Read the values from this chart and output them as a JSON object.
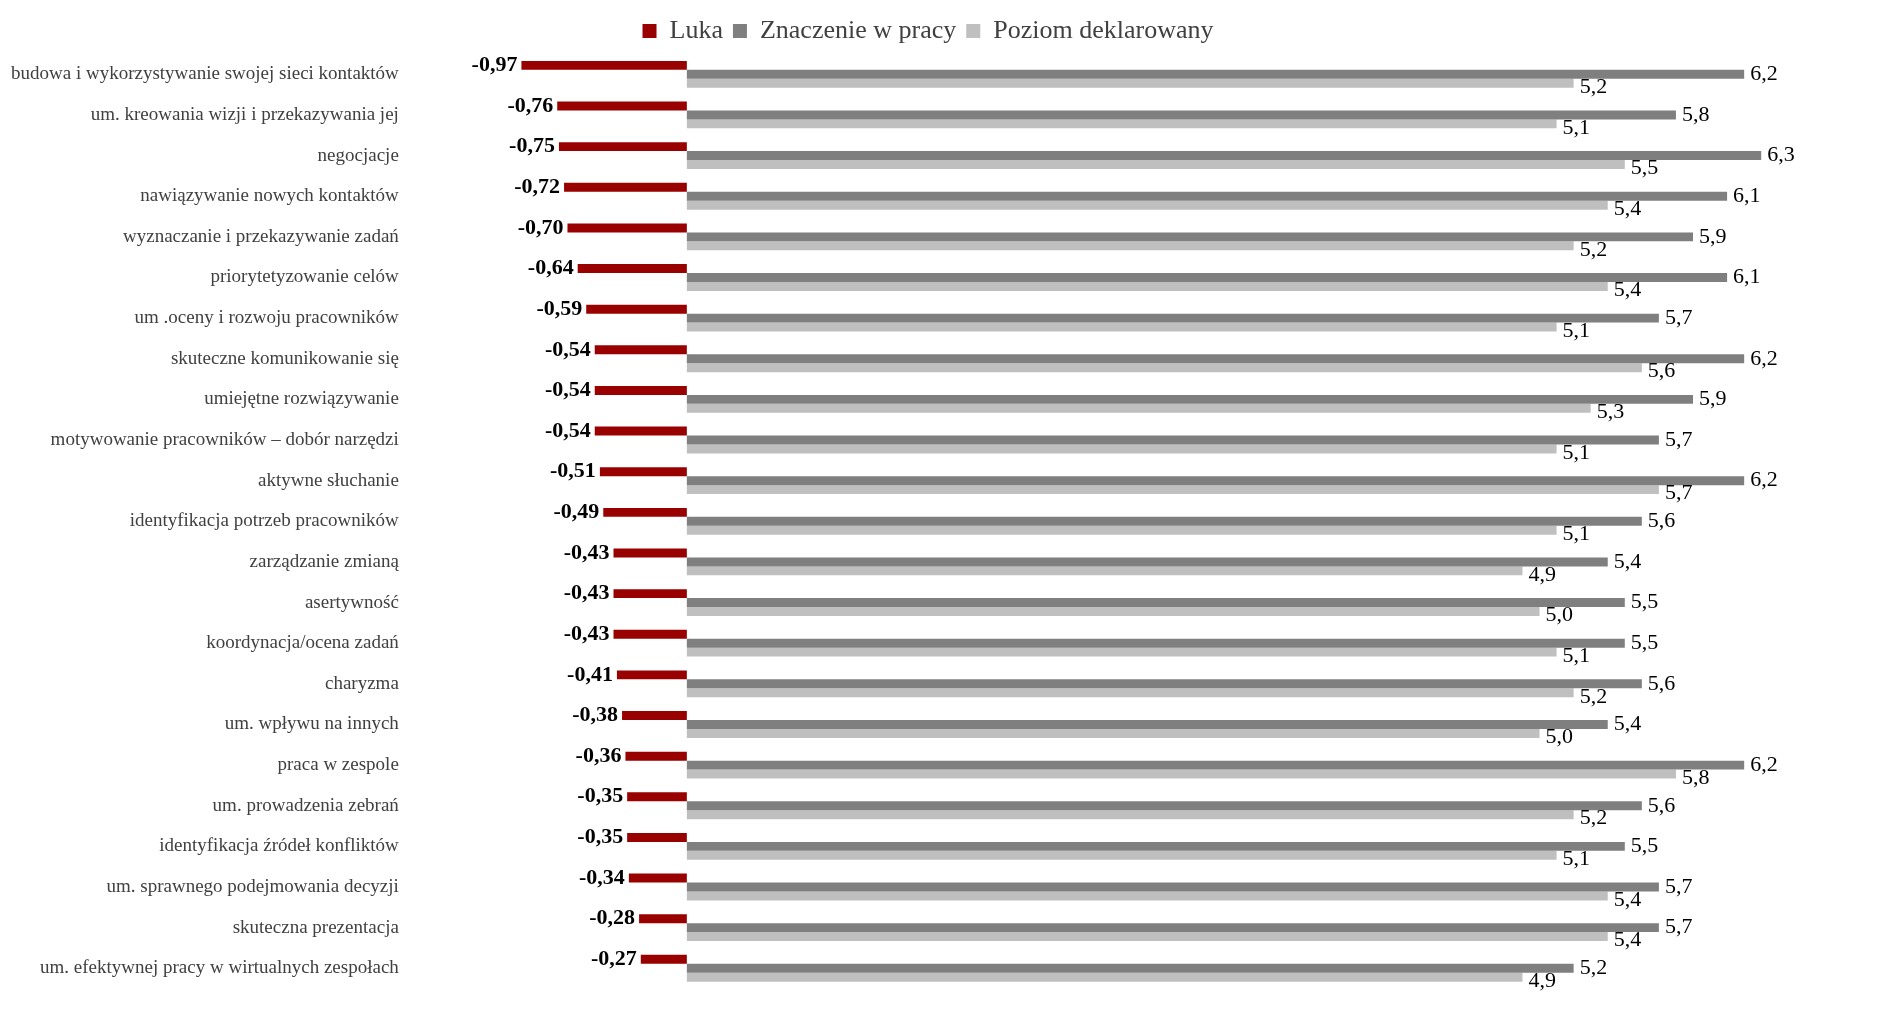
{
  "chart_data": {
    "type": "bar",
    "orientation": "horizontal",
    "legend": "top",
    "categories": [
      "budowa i wykorzystywanie swojej sieci kontaktów",
      "um. kreowania wizji i przekazywania jej",
      "negocjacje",
      "nawiązywanie nowych kontaktów",
      "wyznaczanie i przekazywanie zadań",
      "priorytetyzowanie celów",
      "um .oceny i rozwoju pracowników",
      "skuteczne komunikowanie się",
      "umiejętne rozwiązywanie",
      "motywowanie pracowników – dobór narzędzi",
      "aktywne słuchanie",
      "identyfikacja potrzeb pracowników",
      "zarządzanie zmianą",
      "asertywność",
      "koordynacja/ocena zadań",
      "charyzma",
      "um. wpływu na innych",
      "praca w zespole",
      "um. prowadzenia zebrań",
      "identyfikacja źródeł konfliktów",
      "um. sprawnego podejmowania decyzji",
      "skuteczna prezentacja",
      "um. efektywnej pracy w wirtualnych zespołach"
    ],
    "series": [
      {
        "name": "Luka",
        "color": "#990000",
        "values": [
          -0.97,
          -0.76,
          -0.75,
          -0.72,
          -0.7,
          -0.64,
          -0.59,
          -0.54,
          -0.54,
          -0.54,
          -0.51,
          -0.49,
          -0.43,
          -0.43,
          -0.43,
          -0.41,
          -0.38,
          -0.36,
          -0.35,
          -0.35,
          -0.34,
          -0.28,
          -0.27
        ],
        "value_labels": [
          "-0,97",
          "-0,76",
          "-0,75",
          "-0,72",
          "-0,70",
          "-0,64",
          "-0,59",
          "-0,54",
          "-0,54",
          "-0,54",
          "-0,51",
          "-0,49",
          "-0,43",
          "-0,43",
          "-0,43",
          "-0,41",
          "-0,38",
          "-0,36",
          "-0,35",
          "-0,35",
          "-0,34",
          "-0,28",
          "-0,27"
        ]
      },
      {
        "name": "Znaczenie w pracy",
        "color": "#7f7f7f",
        "values": [
          6.2,
          5.8,
          6.3,
          6.1,
          5.9,
          6.1,
          5.7,
          6.2,
          5.9,
          5.7,
          6.2,
          5.6,
          5.4,
          5.5,
          5.5,
          5.6,
          5.4,
          6.2,
          5.6,
          5.5,
          5.7,
          5.7,
          5.2
        ],
        "value_labels": [
          "6,2",
          "5,8",
          "6,3",
          "6,1",
          "5,9",
          "6,1",
          "5,7",
          "6,2",
          "5,9",
          "5,7",
          "6,2",
          "5,6",
          "5,4",
          "5,5",
          "5,5",
          "5,6",
          "5,4",
          "6,2",
          "5,6",
          "5,5",
          "5,7",
          "5,7",
          "5,2"
        ]
      },
      {
        "name": "Poziom deklarowany",
        "color": "#bfbfbf",
        "values": [
          5.2,
          5.1,
          5.5,
          5.4,
          5.2,
          5.4,
          5.1,
          5.6,
          5.3,
          5.1,
          5.7,
          5.1,
          4.9,
          5.0,
          5.1,
          5.2,
          5.0,
          5.8,
          5.2,
          5.1,
          5.4,
          5.4,
          4.9
        ],
        "value_labels": [
          "5,2",
          "5,1",
          "5,5",
          "5,4",
          "5,2",
          "5,4",
          "5,1",
          "5,6",
          "5,3",
          "5,1",
          "5,7",
          "5,1",
          "4,9",
          "5,0",
          "5,1",
          "5,2",
          "5,0",
          "5,8",
          "5,2",
          "5,1",
          "5,4",
          "5,4",
          "4,9"
        ]
      }
    ]
  }
}
